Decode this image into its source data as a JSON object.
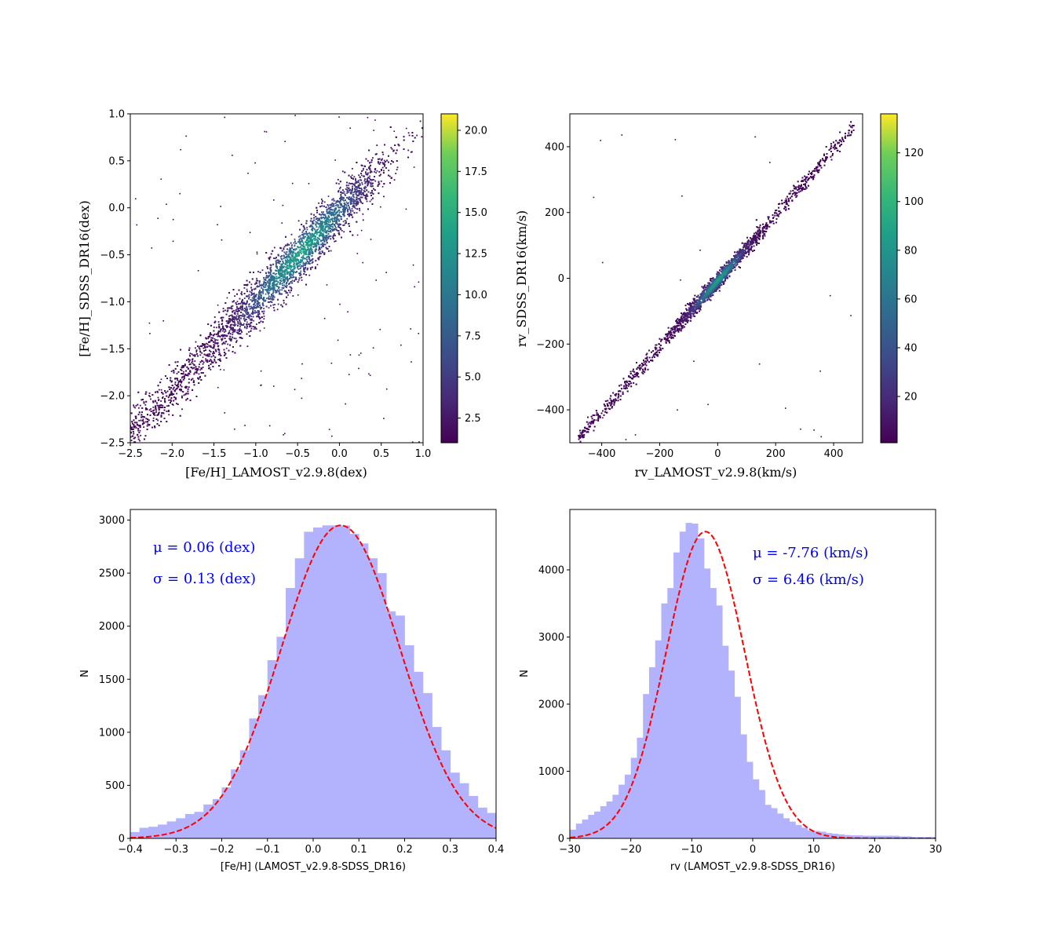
{
  "chart_data": [
    {
      "id": "feh_density",
      "type": "scatter",
      "subtype": "density-colored scatter",
      "xlabel": "[Fe/H]_LAMOST_v2.9.8(dex)",
      "ylabel": "[Fe/H]_SDSS_DR16(dex)",
      "xlim": [
        -2.5,
        1.0
      ],
      "ylim": [
        -2.5,
        1.0
      ],
      "xticks": [
        -2.5,
        -2.0,
        -1.5,
        -1.0,
        -0.5,
        0.0,
        0.5,
        1.0
      ],
      "xtick_labels": [
        "−2.5",
        "−2.0",
        "−1.5",
        "−1.0",
        "−0.5",
        "0.0",
        "0.5",
        "1.0"
      ],
      "yticks": [
        -2.5,
        -2.0,
        -1.5,
        -1.0,
        -0.5,
        0.0,
        0.5,
        1.0
      ],
      "ytick_labels": [
        "−2.5",
        "−2.0",
        "−1.5",
        "−1.0",
        "−0.5",
        "0.0",
        "0.5",
        "1.0"
      ],
      "colorbar": {
        "range": [
          1,
          21
        ],
        "ticks": [
          2.5,
          5.0,
          7.5,
          10.0,
          12.5,
          15.0,
          17.5,
          20.0
        ],
        "tick_labels": [
          "2.5",
          "5.0",
          "7.5",
          "10.0",
          "12.5",
          "15.0",
          "17.5",
          "20.0"
        ],
        "colormap": "viridis"
      },
      "density_model": {
        "slope": 0.95,
        "intercept": -0.04,
        "center_x": -0.45,
        "center_y": -0.47,
        "spread_along": 0.55,
        "scatter_perp": 0.13,
        "x_min": -2.5,
        "x_max": 0.35
      }
    },
    {
      "id": "rv_density",
      "type": "scatter",
      "subtype": "density-colored scatter",
      "xlabel": "rv_LAMOST_v2.9.8(km/s)",
      "ylabel": "rv_SDSS_DR16(km/s)",
      "xlim": [
        -510,
        500
      ],
      "ylim": [
        -500,
        500
      ],
      "xticks": [
        -400,
        -200,
        0,
        200,
        400
      ],
      "xtick_labels": [
        "−400",
        "−200",
        "0",
        "200",
        "400"
      ],
      "yticks": [
        -400,
        -200,
        0,
        200,
        400
      ],
      "ytick_labels": [
        "−400",
        "−200",
        "0",
        "200",
        "400"
      ],
      "colorbar": {
        "range": [
          1,
          136
        ],
        "ticks": [
          20,
          40,
          60,
          80,
          100,
          120
        ],
        "tick_labels": [
          "20",
          "40",
          "60",
          "80",
          "100",
          "120"
        ],
        "colormap": "viridis"
      },
      "density_model": {
        "slope": 1.0,
        "intercept": -8,
        "center_x": 0,
        "center_y": -8,
        "spread_along": 70,
        "scatter_perp": 12,
        "x_min": -480,
        "x_max": 470
      }
    },
    {
      "id": "feh_hist",
      "type": "bar",
      "subtype": "histogram with gaussian fit",
      "xlabel": "[Fe/H] (LAMOST_v2.9.8-SDSS_DR16)",
      "ylabel": "N",
      "xlim": [
        -0.4,
        0.4
      ],
      "ylim": [
        0,
        3100
      ],
      "xticks": [
        -0.4,
        -0.3,
        -0.2,
        -0.1,
        0.0,
        0.1,
        0.2,
        0.3,
        0.4
      ],
      "xtick_labels": [
        "−0.4",
        "−0.3",
        "−0.2",
        "−0.1",
        "0.0",
        "0.1",
        "0.2",
        "0.3",
        "0.4"
      ],
      "yticks": [
        0,
        500,
        1000,
        1500,
        2000,
        2500,
        3000
      ],
      "ytick_labels": [
        "0",
        "500",
        "1000",
        "1500",
        "2000",
        "2500",
        "3000"
      ],
      "bin_start": -0.4,
      "bin_width": 0.02,
      "values": [
        60,
        100,
        110,
        130,
        160,
        190,
        230,
        250,
        320,
        370,
        480,
        650,
        830,
        1130,
        1350,
        1680,
        1900,
        2360,
        2640,
        2890,
        2930,
        2950,
        2950,
        2950,
        2870,
        2780,
        2640,
        2500,
        2140,
        2100,
        1820,
        1570,
        1370,
        1050,
        830,
        620,
        520,
        400,
        290,
        240
      ],
      "bar_color": "#b3b3fd",
      "fit": {
        "mu": 0.06,
        "sigma": 0.13,
        "amplitude": 2950,
        "color": "#ff0000",
        "style": "dashed"
      },
      "annotations": [
        "μ = 0.06 (dex)",
        "σ = 0.13 (dex)"
      ]
    },
    {
      "id": "rv_hist",
      "type": "bar",
      "subtype": "histogram with gaussian fit",
      "xlabel": "rv (LAMOST_v2.9.8-SDSS_DR16)",
      "ylabel": "N",
      "xlim": [
        -30,
        30
      ],
      "ylim": [
        0,
        4900
      ],
      "xticks": [
        -30,
        -20,
        -10,
        0,
        10,
        20,
        30
      ],
      "xtick_labels": [
        "−30",
        "−20",
        "−10",
        "0",
        "10",
        "20",
        "30"
      ],
      "yticks": [
        0,
        1000,
        2000,
        3000,
        4000
      ],
      "ytick_labels": [
        "0",
        "1000",
        "2000",
        "3000",
        "4000"
      ],
      "bin_start": -30,
      "bin_width": 1.0,
      "values": [
        130,
        220,
        280,
        350,
        400,
        480,
        550,
        650,
        800,
        950,
        1200,
        1500,
        2150,
        2550,
        2950,
        3500,
        3730,
        4260,
        4570,
        4700,
        4690,
        4470,
        4020,
        3730,
        3470,
        2870,
        2500,
        2110,
        1550,
        1140,
        880,
        720,
        500,
        450,
        370,
        300,
        250,
        200,
        160,
        120,
        110,
        100,
        80,
        70,
        60,
        50,
        45,
        45,
        40,
        40,
        40,
        40,
        40,
        40,
        30,
        30,
        20,
        20,
        20,
        20
      ],
      "bar_color": "#b3b3fd",
      "fit": {
        "mu": -7.76,
        "sigma": 6.46,
        "amplitude": 4570,
        "color": "#ff0000",
        "style": "dashed"
      },
      "annotations": [
        "μ = -7.76 (km/s)",
        "σ = 6.46 (km/s)"
      ]
    }
  ]
}
